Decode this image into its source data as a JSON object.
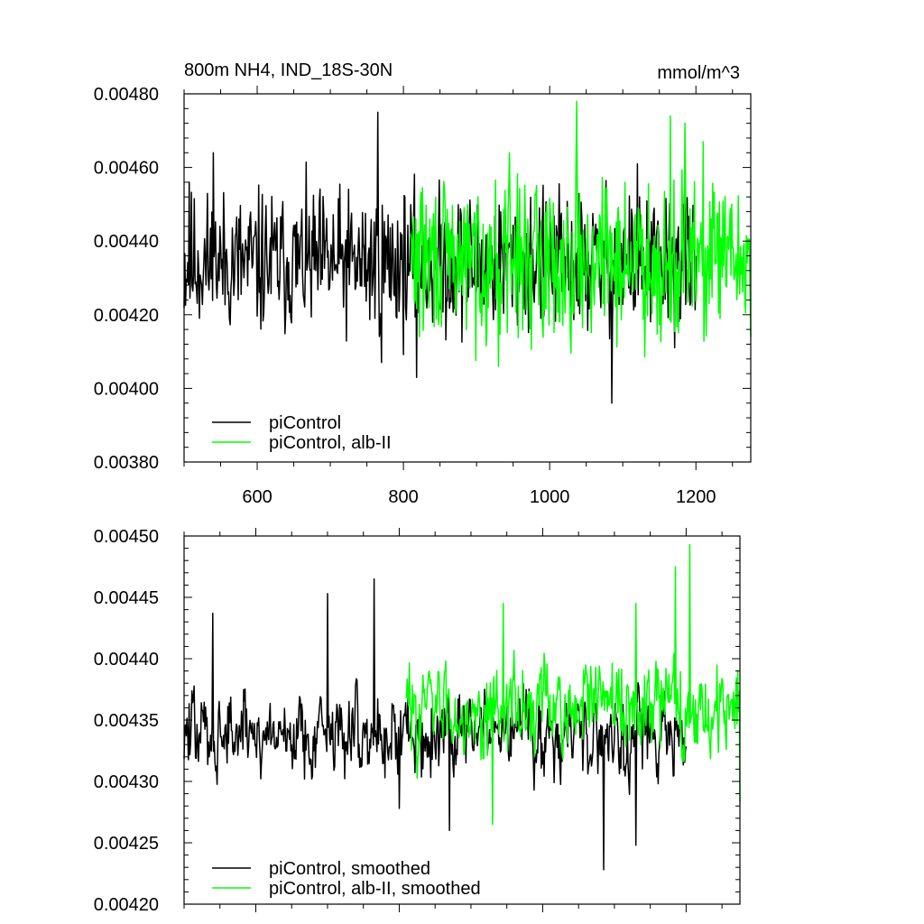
{
  "chart_data": [
    {
      "type": "line",
      "title": "800m NH4, IND_18S-30N",
      "units_label": "mmol/m^3",
      "xlim": [
        500,
        1275
      ],
      "ylim": [
        0.0038,
        0.0048
      ],
      "xticks": [
        600,
        800,
        1000,
        1200
      ],
      "xtick_labels": [
        "600",
        "800",
        "1000",
        "1200"
      ],
      "yticks": [
        0.0038,
        0.004,
        0.0042,
        0.0044,
        0.0046,
        0.0048
      ],
      "ytick_labels": [
        "0.00380",
        "0.00400",
        "0.00420",
        "0.00440",
        "0.00460",
        "0.00480"
      ],
      "legend_position": "bottom-left",
      "series": [
        {
          "name": "piControl",
          "color": "#000000",
          "x_start": 500,
          "x_end": 1200,
          "mean": 0.00434,
          "spread": 0.00012,
          "seed": 11,
          "extremes": [
            [
              507,
              0.00456
            ],
            [
              540,
              0.00464
            ],
            [
              765,
              0.00475
            ],
            [
              770,
              0.00407
            ],
            [
              818,
              0.00403
            ],
            [
              1085,
              0.00396
            ],
            [
              1120,
              0.00461
            ],
            [
              1185,
              0.00448
            ]
          ]
        },
        {
          "name": "piControl, alb-II",
          "color": "#00ff00",
          "x_start": 810,
          "x_end": 1275,
          "mean": 0.00435,
          "spread": 0.00013,
          "seed": 29,
          "extremes": [
            [
              930,
              0.00406
            ],
            [
              945,
              0.00464
            ],
            [
              1037,
              0.00478
            ],
            [
              1165,
              0.00474
            ],
            [
              1185,
              0.00472
            ],
            [
              1210,
              0.00467
            ],
            [
              1275,
              0.00414
            ]
          ]
        }
      ]
    },
    {
      "type": "line",
      "xlim": [
        500,
        1275
      ],
      "ylim": [
        0.0042,
        0.0045
      ],
      "xticks": [
        600,
        800,
        1000,
        1200
      ],
      "yticks": [
        0.0042,
        0.00425,
        0.0043,
        0.00435,
        0.0044,
        0.00445,
        0.0045
      ],
      "ytick_labels": [
        "0.00420",
        "0.00425",
        "0.00430",
        "0.00435",
        "0.00440",
        "0.00445",
        "0.00450"
      ],
      "legend_position": "bottom-left",
      "series": [
        {
          "name": "piControl, smoothed",
          "color": "#000000",
          "x_start": 500,
          "x_end": 1200,
          "mean": 0.00434,
          "spread": 3.5e-05,
          "seed": 47,
          "extremes": [
            [
              540,
              0.004437
            ],
            [
              700,
              0.004453
            ],
            [
              765,
              0.004465
            ],
            [
              800,
              0.004278
            ],
            [
              870,
              0.00426
            ],
            [
              1085,
              0.004228
            ],
            [
              1130,
              0.004248
            ]
          ]
        },
        {
          "name": "piControl, alb-II, smoothed",
          "color": "#00ff00",
          "x_start": 810,
          "x_end": 1275,
          "mean": 0.00436,
          "spread": 3.8e-05,
          "seed": 83,
          "extremes": [
            [
              930,
              0.004265
            ],
            [
              945,
              0.004445
            ],
            [
              1130,
              0.004445
            ],
            [
              1185,
              0.004475
            ],
            [
              1205,
              0.004493
            ],
            [
              1275,
              0.004283
            ]
          ]
        }
      ]
    }
  ]
}
